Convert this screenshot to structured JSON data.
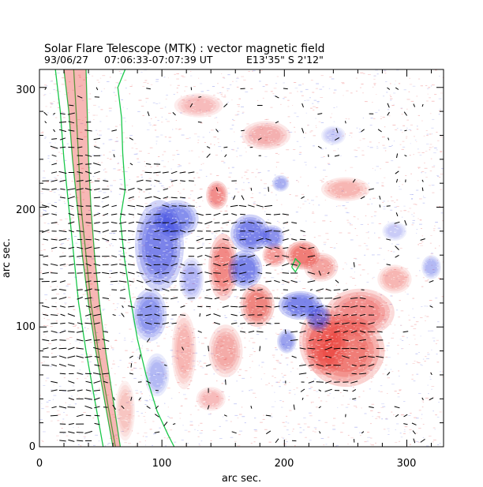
{
  "chart_data": {
    "type": "heatmap",
    "title": "Solar Flare Telescope (MTK) : vector magnetic field",
    "subtitle": {
      "date": "93/06/27",
      "time": "07:06:33-07:07:39 UT",
      "position": "E13'35\"  S 2'12\""
    },
    "xlabel": "arc sec.",
    "ylabel": "arc sec.",
    "xlim": [
      0,
      330
    ],
    "ylim": [
      0,
      315
    ],
    "xticks": [
      0,
      100,
      200,
      300
    ],
    "yticks": [
      0,
      100,
      200,
      300
    ],
    "grid": false,
    "colors": {
      "positive_polarity": "#e8302a",
      "negative_polarity": "#2c3ae0",
      "background_noise_red": "#f2a3a3",
      "background_noise_blue": "#a8aef0",
      "contour": "#19c84a",
      "transverse_vectors": "#000000",
      "frame": "#000000"
    },
    "series": [
      {
        "kind": "positive",
        "regions": [
          {
            "cx": 250,
            "cy": 80,
            "rx": 32,
            "ry": 30,
            "strength": 1.0
          },
          {
            "cx": 262,
            "cy": 112,
            "rx": 28,
            "ry": 20,
            "strength": 0.8
          },
          {
            "cx": 232,
            "cy": 88,
            "rx": 20,
            "ry": 28,
            "strength": 0.85
          },
          {
            "cx": 215,
            "cy": 160,
            "rx": 14,
            "ry": 12,
            "strength": 1.0
          },
          {
            "cx": 192,
            "cy": 160,
            "rx": 10,
            "ry": 10,
            "strength": 0.7
          },
          {
            "cx": 178,
            "cy": 118,
            "rx": 14,
            "ry": 18,
            "strength": 0.9
          },
          {
            "cx": 150,
            "cy": 150,
            "rx": 12,
            "ry": 28,
            "strength": 0.85
          },
          {
            "cx": 145,
            "cy": 210,
            "rx": 9,
            "ry": 12,
            "strength": 0.8
          },
          {
            "cx": 152,
            "cy": 80,
            "rx": 14,
            "ry": 22,
            "strength": 0.55
          },
          {
            "cx": 118,
            "cy": 80,
            "rx": 10,
            "ry": 32,
            "strength": 0.45
          },
          {
            "cx": 185,
            "cy": 260,
            "rx": 20,
            "ry": 12,
            "strength": 0.5
          },
          {
            "cx": 250,
            "cy": 215,
            "rx": 20,
            "ry": 10,
            "strength": 0.45
          },
          {
            "cx": 290,
            "cy": 140,
            "rx": 14,
            "ry": 12,
            "strength": 0.45
          },
          {
            "cx": 140,
            "cy": 40,
            "rx": 12,
            "ry": 10,
            "strength": 0.4
          },
          {
            "cx": 70,
            "cy": 30,
            "rx": 8,
            "ry": 25,
            "strength": 0.35
          },
          {
            "cx": 130,
            "cy": 285,
            "rx": 20,
            "ry": 10,
            "strength": 0.4
          },
          {
            "cx": 230,
            "cy": 150,
            "rx": 14,
            "ry": 12,
            "strength": 0.6
          }
        ]
      },
      {
        "kind": "negative",
        "regions": [
          {
            "cx": 98,
            "cy": 168,
            "rx": 20,
            "ry": 38,
            "strength": 1.0
          },
          {
            "cx": 112,
            "cy": 190,
            "rx": 18,
            "ry": 16,
            "strength": 0.85
          },
          {
            "cx": 90,
            "cy": 110,
            "rx": 14,
            "ry": 22,
            "strength": 0.75
          },
          {
            "cx": 96,
            "cy": 60,
            "rx": 10,
            "ry": 18,
            "strength": 0.45
          },
          {
            "cx": 124,
            "cy": 140,
            "rx": 10,
            "ry": 18,
            "strength": 0.5
          },
          {
            "cx": 172,
            "cy": 178,
            "rx": 16,
            "ry": 16,
            "strength": 1.0
          },
          {
            "cx": 168,
            "cy": 148,
            "rx": 14,
            "ry": 16,
            "strength": 0.95
          },
          {
            "cx": 190,
            "cy": 175,
            "rx": 10,
            "ry": 10,
            "strength": 0.8
          },
          {
            "cx": 213,
            "cy": 118,
            "rx": 18,
            "ry": 12,
            "strength": 0.95
          },
          {
            "cx": 228,
            "cy": 108,
            "rx": 10,
            "ry": 12,
            "strength": 0.9
          },
          {
            "cx": 202,
            "cy": 88,
            "rx": 8,
            "ry": 10,
            "strength": 0.7
          },
          {
            "cx": 197,
            "cy": 220,
            "rx": 7,
            "ry": 7,
            "strength": 0.55
          },
          {
            "cx": 320,
            "cy": 150,
            "rx": 8,
            "ry": 10,
            "strength": 0.45
          },
          {
            "cx": 290,
            "cy": 180,
            "rx": 10,
            "ry": 8,
            "strength": 0.3
          },
          {
            "cx": 240,
            "cy": 260,
            "rx": 10,
            "ry": 8,
            "strength": 0.3
          }
        ]
      }
    ],
    "contours": [
      {
        "name": "",
        "points": [
          [
            13,
            315
          ],
          [
            17,
            280
          ],
          [
            20,
            240
          ],
          [
            24,
            200
          ],
          [
            28,
            160
          ],
          [
            32,
            120
          ],
          [
            38,
            80
          ],
          [
            45,
            40
          ],
          [
            52,
            0
          ]
        ]
      },
      {
        "name": "",
        "points": [
          [
            20,
            315
          ],
          [
            24,
            280
          ],
          [
            27,
            240
          ],
          [
            31,
            200
          ],
          [
            35,
            160
          ],
          [
            40,
            120
          ],
          [
            46,
            80
          ],
          [
            53,
            40
          ],
          [
            60,
            0
          ]
        ]
      },
      {
        "name": "",
        "points": [
          [
            28,
            315
          ],
          [
            30,
            280
          ],
          [
            32,
            240
          ],
          [
            34,
            200
          ],
          [
            38,
            160
          ],
          [
            42,
            120
          ],
          [
            48,
            80
          ],
          [
            55,
            40
          ],
          [
            62,
            0
          ]
        ]
      },
      {
        "name": "",
        "points": [
          [
            38,
            315
          ],
          [
            39,
            280
          ],
          [
            40,
            240
          ],
          [
            42,
            200
          ],
          [
            45,
            160
          ],
          [
            49,
            120
          ],
          [
            54,
            80
          ],
          [
            60,
            40
          ],
          [
            66,
            0
          ]
        ]
      },
      {
        "name": "",
        "points": [
          [
            70,
            315
          ],
          [
            64,
            300
          ],
          [
            67,
            275
          ],
          [
            68,
            245
          ],
          [
            70,
            215
          ],
          [
            66,
            190
          ],
          [
            69,
            160
          ],
          [
            74,
            125
          ],
          [
            80,
            90
          ],
          [
            87,
            60
          ],
          [
            96,
            30
          ],
          [
            105,
            10
          ],
          [
            110,
            0
          ]
        ]
      },
      {
        "name": "",
        "points": [
          [
            206,
            150
          ],
          [
            209,
            157
          ],
          [
            213,
            153
          ],
          [
            209,
            146
          ],
          [
            206,
            150
          ]
        ]
      }
    ],
    "vector_field": {
      "x_range": [
        5,
        325
      ],
      "y_range": [
        5,
        305
      ],
      "spacing": 7,
      "strong_regions": [
        {
          "cx": 100,
          "cy": 170,
          "rx": 45,
          "ry": 70
        },
        {
          "cx": 170,
          "cy": 150,
          "rx": 55,
          "ry": 55
        },
        {
          "cx": 245,
          "cy": 90,
          "rx": 40,
          "ry": 45
        },
        {
          "cx": 30,
          "cy": 140,
          "rx": 30,
          "ry": 150
        }
      ]
    }
  },
  "labels": {
    "title": "Solar Flare Telescope (MTK) : vector magnetic field",
    "date": "93/06/27",
    "time": "07:06:33-07:07:39 UT",
    "position": "E13'35\"  S 2'12\"",
    "xlabel": "arc sec.",
    "ylabel": "arc sec.",
    "xticks": [
      "0",
      "100",
      "200",
      "300"
    ],
    "yticks": [
      "0",
      "100",
      "200",
      "300"
    ]
  }
}
